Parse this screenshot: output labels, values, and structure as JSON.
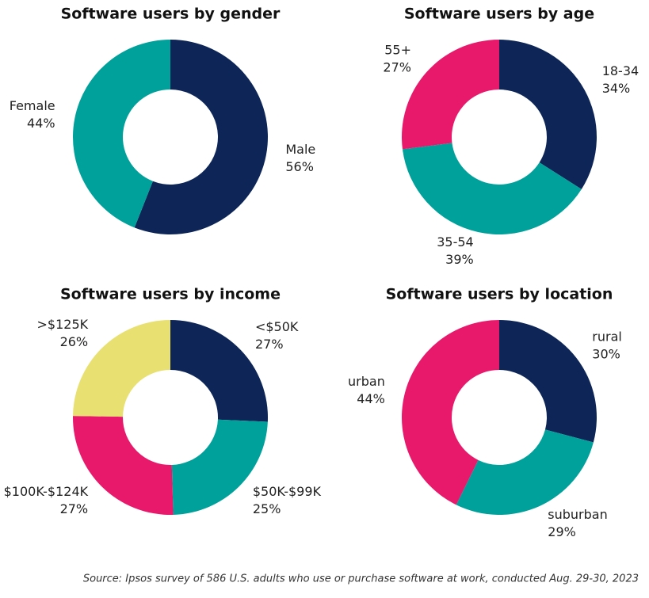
{
  "chart_data": [
    {
      "type": "donut",
      "title": "Software users by gender",
      "categories": [
        "Male",
        "Female"
      ],
      "values": [
        56,
        44
      ],
      "value_labels": [
        "56%",
        "44%"
      ],
      "colors": [
        "#0d2657",
        "#00a19b"
      ]
    },
    {
      "type": "donut",
      "title": "Software users by age",
      "categories": [
        "18-34",
        "35-54",
        "55+"
      ],
      "values": [
        34,
        39,
        27
      ],
      "value_labels": [
        "34%",
        "39%",
        "27%"
      ],
      "colors": [
        "#0d2657",
        "#00a19b",
        "#e8196b"
      ]
    },
    {
      "type": "donut",
      "title": "Software users by income",
      "categories": [
        "<$50K",
        "$50K-$99K",
        "$100K-$124K",
        ">$125K"
      ],
      "values": [
        27,
        25,
        27,
        26
      ],
      "value_labels": [
        "27%",
        "25%",
        "27%",
        "26%"
      ],
      "colors": [
        "#0d2657",
        "#00a19b",
        "#e8196b",
        "#e8e070"
      ]
    },
    {
      "type": "donut",
      "title": "Software users by location",
      "categories": [
        "rural",
        "suburban",
        "urban"
      ],
      "values": [
        30,
        29,
        44
      ],
      "value_labels": [
        "30%",
        "29%",
        "44%"
      ],
      "colors": [
        "#0d2657",
        "#00a19b",
        "#e8196b"
      ]
    }
  ],
  "source": "Source: Ipsos survey of 586 U.S. adults who use or purchase software at work, conducted Aug. 29-30, 2023"
}
